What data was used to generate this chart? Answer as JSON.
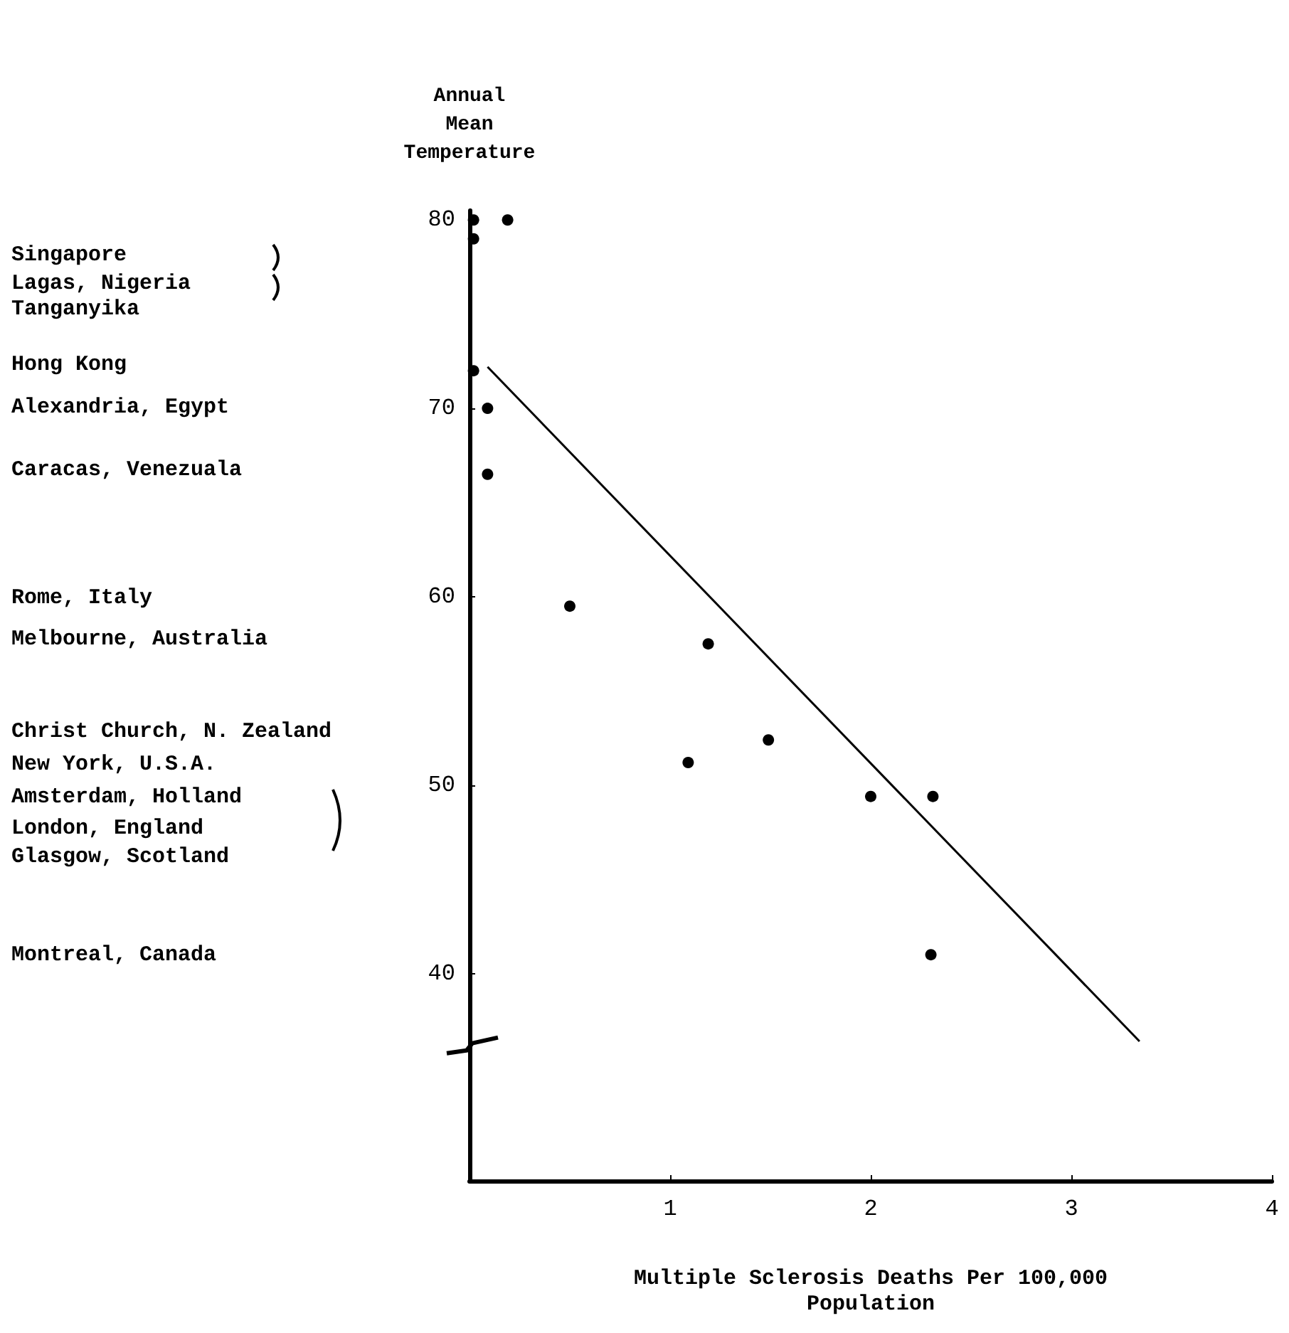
{
  "chart_data": {
    "type": "scatter",
    "xlabel": "Multiple Sclerosis Deaths Per 100,000\nPopulation",
    "ylabel": "Annual\nMean\nTemperature",
    "xlim": [
      0,
      4
    ],
    "ylim": [
      29,
      80.5
    ],
    "xticks": [
      1,
      2,
      3,
      4
    ],
    "yticks": [
      40,
      50,
      60,
      70,
      80
    ],
    "series": [
      {
        "marker": "circle",
        "color": "#000000",
        "x": [
          0.02,
          0.02,
          0.19,
          0.02,
          0.09,
          0.09,
          0.5,
          1.19,
          1.09,
          1.49,
          2.0,
          2.31,
          2.3
        ],
        "values": [
          80,
          79,
          80,
          72,
          70,
          66.5,
          59.5,
          57.5,
          51.2,
          52.4,
          49.4,
          49.4,
          41
        ]
      },
      {
        "type": "line",
        "marker": "none",
        "color": "#000000",
        "x": [
          0.09,
          3.34
        ],
        "values": [
          72.2,
          36.4
        ]
      }
    ],
    "annotations": [
      "Singapore",
      "Lagas, Nigeria",
      "Tanganyika",
      "Hong Kong",
      "Alexandria, Egypt",
      "Caracas, Venezuala",
      "Rome, Italy",
      "Melbourne, Australia",
      "Christ Church, N. Zealand",
      "New York, U.S.A.",
      "Amsterdam, Holland",
      "London, England",
      "Glasgow, Scotland",
      "Montreal, Canada"
    ]
  }
}
